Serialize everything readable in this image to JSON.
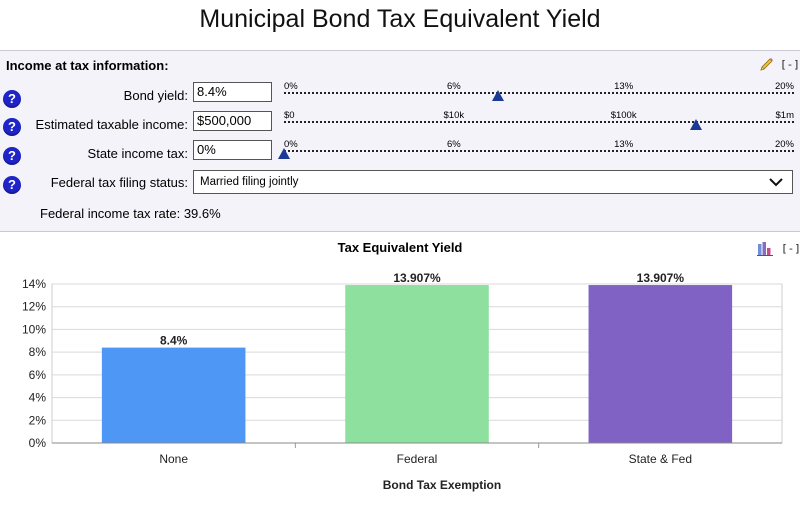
{
  "page": {
    "title": "Municipal Bond Tax Equivalent Yield"
  },
  "panel": {
    "heading": "Income at tax information:",
    "collapse_label": "[-]",
    "help_label": "?",
    "bond_yield": {
      "label": "Bond yield:",
      "value": "8.4%",
      "ticks": [
        "0%",
        "6%",
        "13%",
        "20%"
      ],
      "slider_fraction": 0.42
    },
    "taxable_income": {
      "label": "Estimated taxable income:",
      "value": "$500,000",
      "ticks": [
        "$0",
        "$10k",
        "$100k",
        "$1m"
      ],
      "slider_fraction": 0.807
    },
    "state_tax": {
      "label": "State income tax:",
      "value": "0%",
      "ticks": [
        "0%",
        "6%",
        "13%",
        "20%"
      ],
      "slider_fraction": 0.0
    },
    "filing_status": {
      "label": "Federal tax filing status:",
      "selected": "Married filing jointly"
    },
    "federal_rate": {
      "label": "Federal income tax rate:",
      "value": "39.6%"
    }
  },
  "chart_section": {
    "collapse_label": "[-]"
  },
  "chart_data": {
    "type": "bar",
    "title": "Tax Equivalent Yield",
    "xlabel": "Bond Tax Exemption",
    "ylabel": "",
    "categories": [
      "None",
      "Federal",
      "State & Fed"
    ],
    "values": [
      8.4,
      13.907,
      13.907
    ],
    "value_labels": [
      "8.4%",
      "13.907%",
      "13.907%"
    ],
    "colors": [
      "#4f97f5",
      "#8ee09e",
      "#7f62c3"
    ],
    "ylim": [
      0,
      14
    ],
    "yticks": [
      "0%",
      "2%",
      "4%",
      "6%",
      "8%",
      "10%",
      "12%",
      "14%"
    ],
    "grid": true,
    "legend": "none"
  },
  "colors": {
    "help_icon": "#1e24c8",
    "slider_thumb": "#1b3a96",
    "panel_bg": "#f3f3f9"
  }
}
